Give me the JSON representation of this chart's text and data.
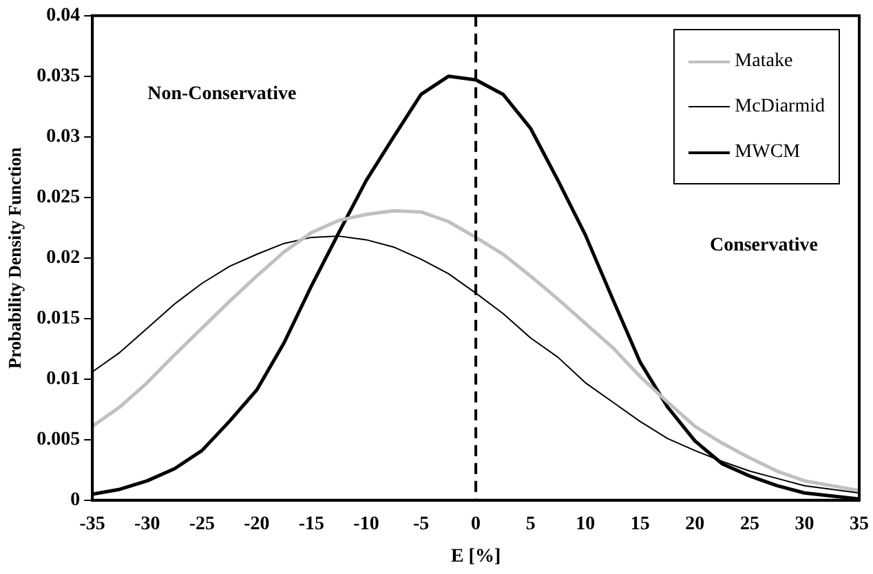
{
  "chart_data": {
    "type": "line",
    "xlabel": "E [%]",
    "ylabel": "Probability Density Function",
    "x": [
      -35,
      -32.5,
      -30,
      -27.5,
      -25,
      -22.5,
      -20,
      -17.5,
      -15,
      -12.5,
      -10,
      -7.5,
      -5,
      -2.5,
      0,
      2.5,
      5,
      7.5,
      10,
      12.5,
      15,
      17.5,
      20,
      22.5,
      25,
      27.5,
      30,
      35
    ],
    "series": [
      {
        "name": "Matake",
        "color": "#c0c0c0",
        "values": [
          0.0061,
          0.0077,
          0.0097,
          0.012,
          0.0142,
          0.0164,
          0.0185,
          0.0205,
          0.0221,
          0.0231,
          0.0236,
          0.0239,
          0.0238,
          0.023,
          0.0217,
          0.0203,
          0.0185,
          0.0166,
          0.0146,
          0.0126,
          0.0102,
          0.0081,
          0.0061,
          0.0047,
          0.0035,
          0.0024,
          0.0016,
          0.0008
        ]
      },
      {
        "name": "McDiarmid",
        "color": "#000000",
        "values": [
          0.0106,
          0.0122,
          0.0142,
          0.0162,
          0.0179,
          0.0193,
          0.0203,
          0.0212,
          0.0217,
          0.0218,
          0.0215,
          0.0209,
          0.0199,
          0.0187,
          0.0171,
          0.0154,
          0.0134,
          0.0118,
          0.0097,
          0.0081,
          0.0065,
          0.0051,
          0.0041,
          0.0032,
          0.0024,
          0.0018,
          0.0012,
          0.0006
        ]
      },
      {
        "name": "MWCM",
        "color": "#000000",
        "values": [
          0.0005,
          0.0009,
          0.0016,
          0.0026,
          0.0041,
          0.0065,
          0.0091,
          0.013,
          0.0177,
          0.0221,
          0.0264,
          0.03,
          0.0335,
          0.035,
          0.0347,
          0.0335,
          0.0307,
          0.0264,
          0.0219,
          0.0166,
          0.0114,
          0.0077,
          0.0049,
          0.003,
          0.002,
          0.0012,
          0.0006,
          0.0001
        ]
      }
    ],
    "xlim": [
      -35,
      35
    ],
    "xticks": [
      -35,
      -30,
      -25,
      -20,
      -15,
      -10,
      -5,
      0,
      5,
      10,
      15,
      20,
      25,
      30,
      35
    ],
    "ylim": [
      0,
      0.04
    ],
    "yticks": [
      0,
      0.005,
      0.01,
      0.015,
      0.02,
      0.025,
      0.03,
      0.035,
      0.04
    ],
    "ref_lines": [
      {
        "axis": "x",
        "value": 0,
        "color": "#000000",
        "line_style": "dashed"
      }
    ],
    "annotations": [
      "Non-Conservative",
      "Conservative"
    ],
    "legend": "top right",
    "grid": false,
    "marker": "none",
    "line_style": "solid"
  }
}
